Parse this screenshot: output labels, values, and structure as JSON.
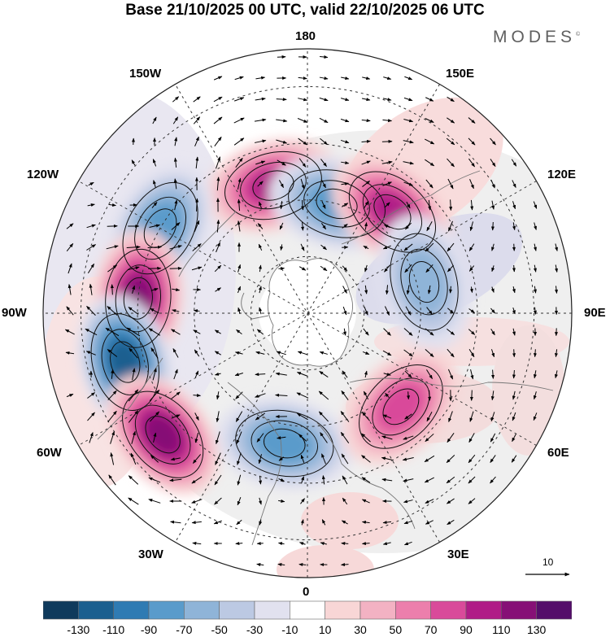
{
  "title": "Base 21/10/2025 00 UTC, valid 22/10/2025 06 UTC",
  "brand": "MODES",
  "brand_mark": "©",
  "longitude_labels": {
    "top": "180",
    "upper_left": "150W",
    "upper_right": "150E",
    "mid_upper_left": "120W",
    "mid_upper_right": "120E",
    "left": "90W",
    "right": "90E",
    "mid_lower_left": "60W",
    "mid_lower_right": "60E",
    "lower_left": "30W",
    "lower_right": "30E",
    "bottom": "0"
  },
  "vector_scale_label": "10",
  "colorbar": {
    "ticks": [
      "-130",
      "-110",
      "-90",
      "-70",
      "-50",
      "-30",
      "-10",
      "10",
      "30",
      "50",
      "70",
      "90",
      "110",
      "130"
    ],
    "colors": [
      "#0f3a5c",
      "#1b5f8f",
      "#2f7bb3",
      "#5a9bcb",
      "#8fb4d8",
      "#bcc9e3",
      "#e1e1ef",
      "#ffffff",
      "#f8d6d6",
      "#f3b2c3",
      "#ec7fac",
      "#d94a9a",
      "#b01c87",
      "#861076",
      "#540e6a"
    ]
  },
  "anomalies": [
    {
      "lon": -165,
      "lat": 55,
      "value": 95
    },
    {
      "lon": 165,
      "lat": 60,
      "value": -80
    },
    {
      "lon": 140,
      "lat": 55,
      "value": 100
    },
    {
      "lon": 105,
      "lat": 58,
      "value": -55
    },
    {
      "lon": -120,
      "lat": 45,
      "value": -75
    },
    {
      "lon": -95,
      "lat": 45,
      "value": 125
    },
    {
      "lon": -75,
      "lat": 40,
      "value": -115
    },
    {
      "lon": -50,
      "lat": 40,
      "value": 110
    },
    {
      "lon": -10,
      "lat": 55,
      "value": -85
    },
    {
      "lon": 45,
      "lat": 55,
      "value": 70
    }
  ]
}
